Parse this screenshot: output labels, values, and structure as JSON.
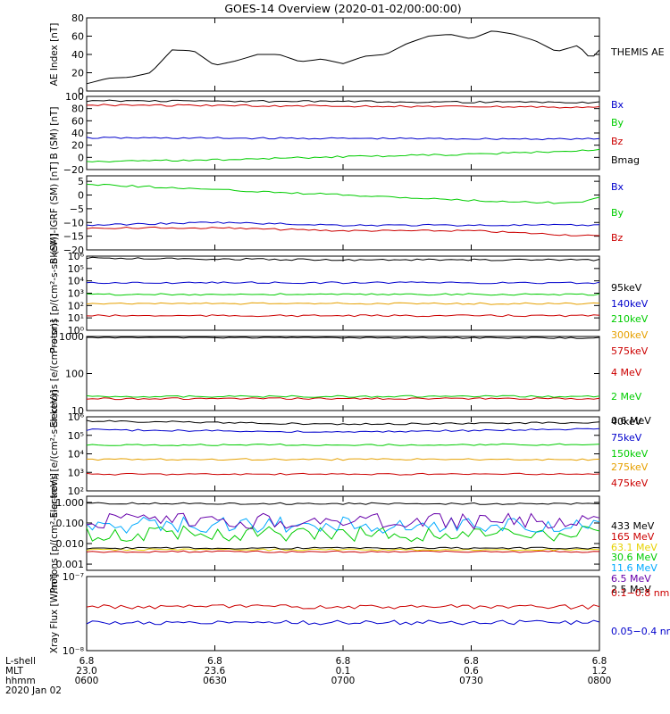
{
  "title": "GOES-14 Overview (2020-01-02/00:00:00)",
  "colors": {
    "black": "#000000",
    "red": "#cc0000",
    "green": "#00cc00",
    "blue": "#0000cc",
    "orange": "#e6a000",
    "yellow": "#e6d200",
    "cyan": "#00aaff",
    "purple": "#6600aa"
  },
  "chart_data": [
    {
      "type": "line",
      "ylabel": "AE Index [nT]",
      "ylim": [
        0,
        80
      ],
      "yscale": "linear",
      "yticks": [
        "0",
        "20",
        "40",
        "60",
        "80"
      ],
      "x_unit": "hours UT",
      "series": [
        {
          "name": "THEMIS AE",
          "color": "#000000",
          "x": [
            6.0,
            6.083,
            6.167,
            6.25,
            6.333,
            6.417,
            6.5,
            6.583,
            6.667,
            6.75,
            6.833,
            6.917,
            7.0,
            7.083,
            7.167,
            7.25,
            7.333,
            7.417,
            7.5,
            7.583,
            7.667,
            7.75,
            7.833,
            7.917,
            7.967,
            8.0
          ],
          "y": [
            8,
            14,
            15,
            20,
            45,
            44,
            28,
            33,
            40,
            40,
            32,
            35,
            30,
            38,
            40,
            52,
            60,
            62,
            57,
            66,
            62,
            55,
            43,
            50,
            35,
            45
          ]
        }
      ]
    },
    {
      "type": "line",
      "ylabel": "B (SM) [nT]",
      "ylim": [
        -20,
        100
      ],
      "yscale": "linear",
      "yticks": [
        "−20",
        "0",
        "20",
        "40",
        "60",
        "80",
        "100"
      ],
      "series": [
        {
          "name": "Bx",
          "color": "#0000cc",
          "x": [
            6.0,
            8.0
          ],
          "y": [
            32,
            30
          ]
        },
        {
          "name": "By",
          "color": "#00cc00",
          "x": [
            6.0,
            6.5,
            7.0,
            7.5,
            8.0
          ],
          "y": [
            -7,
            -4,
            1,
            5,
            12
          ]
        },
        {
          "name": "Bz",
          "color": "#cc0000",
          "x": [
            6.0,
            8.0
          ],
          "y": [
            86,
            82
          ]
        },
        {
          "name": "Bmag",
          "color": "#000000",
          "x": [
            6.0,
            8.0
          ],
          "y": [
            93,
            90
          ]
        }
      ]
    },
    {
      "type": "line",
      "ylabel": "B (SM)-IGRF (SM) [nT]",
      "ylim": [
        -20,
        7
      ],
      "yscale": "linear",
      "yticks": [
        "−20",
        "−15",
        "−10",
        "−5",
        "0",
        "5"
      ],
      "series": [
        {
          "name": "Bx",
          "color": "#0000cc",
          "x": [
            6.0,
            6.5,
            7.0,
            7.5,
            8.0
          ],
          "y": [
            -11,
            -10,
            -11,
            -11,
            -11
          ]
        },
        {
          "name": "By",
          "color": "#00cc00",
          "x": [
            6.0,
            6.5,
            7.0,
            7.5,
            7.9,
            8.0
          ],
          "y": [
            4,
            2,
            0,
            -2,
            -3,
            -1
          ]
        },
        {
          "name": "Bz",
          "color": "#cc0000",
          "x": [
            6.0,
            6.5,
            7.0,
            7.5,
            8.0
          ],
          "y": [
            -12,
            -12,
            -13,
            -13,
            -15
          ]
        }
      ]
    },
    {
      "type": "line",
      "ylabel": "Protons [p/(cm²-s-sr-keV)]",
      "ylim": [
        1,
        1000000
      ],
      "yscale": "log",
      "yticks": [
        "10⁰",
        "10¹",
        "10²",
        "10³",
        "10⁴",
        "10⁵",
        "10⁶"
      ],
      "series": [
        {
          "name": "575keV",
          "color": "#cc0000",
          "x": [
            6.0,
            8.0
          ],
          "y": [
            15,
            15
          ]
        },
        {
          "name": "300keV",
          "color": "#e6a000",
          "x": [
            6.0,
            8.0
          ],
          "y": [
            150,
            140
          ]
        },
        {
          "name": "210keV",
          "color": "#00cc00",
          "x": [
            6.0,
            8.0
          ],
          "y": [
            800,
            800
          ]
        },
        {
          "name": "140keV",
          "color": "#0000cc",
          "x": [
            6.0,
            8.0
          ],
          "y": [
            7000,
            7000
          ]
        },
        {
          "name": "95keV",
          "color": "#000000",
          "x": [
            6.0,
            7.0,
            8.0
          ],
          "y": [
            700000,
            500000,
            500000
          ]
        }
      ]
    },
    {
      "type": "line",
      "ylabel": "Electrons [e/(cm²-s-sr)]",
      "ylim": [
        10,
        1000
      ],
      "yscale": "log",
      "yticks": [
        "10",
        "100",
        "1000"
      ],
      "series": [
        {
          "name": "4 MeV",
          "color": "#cc0000",
          "x": [
            6.0,
            8.0
          ],
          "y": [
            21,
            21
          ]
        },
        {
          "name": "2 MeV",
          "color": "#00cc00",
          "x": [
            6.0,
            8.0
          ],
          "y": [
            24,
            24
          ]
        },
        {
          "name": "0.6 MeV",
          "color": "#000000",
          "x": [
            6.0,
            8.0
          ],
          "y": [
            950,
            930
          ]
        }
      ]
    },
    {
      "type": "line",
      "ylabel": "Electrons [e/(cm²-s-sr-keV)]",
      "ylim": [
        100,
        1000000
      ],
      "yscale": "log",
      "yticks": [
        "10²",
        "10³",
        "10⁴",
        "10⁵",
        "10⁶"
      ],
      "series": [
        {
          "name": "475keV",
          "color": "#cc0000",
          "x": [
            6.0,
            8.0
          ],
          "y": [
            800,
            800
          ]
        },
        {
          "name": "275keV",
          "color": "#e6a000",
          "x": [
            6.0,
            8.0
          ],
          "y": [
            5000,
            5000
          ]
        },
        {
          "name": "150keV",
          "color": "#00cc00",
          "x": [
            6.0,
            8.0
          ],
          "y": [
            30000,
            32000
          ]
        },
        {
          "name": "75keV",
          "color": "#0000cc",
          "x": [
            6.0,
            7.0,
            8.0
          ],
          "y": [
            200000,
            150000,
            220000
          ]
        },
        {
          "name": "40keV",
          "color": "#000000",
          "x": [
            6.0,
            7.0,
            8.0
          ],
          "y": [
            600000,
            400000,
            500000
          ]
        }
      ]
    },
    {
      "type": "line",
      "ylabel": "Protons [p/(cm²-s-sr-keV)]",
      "ylim": [
        0.0005,
        2.0
      ],
      "yscale": "log",
      "yticks": [
        "0.001",
        "0.010",
        "0.100",
        "1.000"
      ],
      "series": [
        {
          "name": "433 MeV",
          "color": "#000000",
          "x": [
            6.0,
            8.0
          ],
          "y": [
            0.9,
            0.85
          ]
        },
        {
          "name": "165 MeV",
          "color": "#cc0000",
          "x": [
            6.0,
            8.0
          ],
          "y": [
            0.004,
            0.004
          ]
        },
        {
          "name": "63.1 MeV",
          "color": "#e6d200",
          "x": [
            6.0,
            8.0
          ],
          "y": [
            0.005,
            0.005
          ]
        },
        {
          "name": "30.6 MeV",
          "color": "#00cc00",
          "x": [
            6.0,
            8.0
          ],
          "y": [
            0.03,
            0.03
          ]
        },
        {
          "name": "11.6 MeV",
          "color": "#00aaff",
          "x": [
            6.0,
            8.0
          ],
          "y": [
            0.08,
            0.08
          ]
        },
        {
          "name": "6.5 MeV",
          "color": "#6600aa",
          "x": [
            6.0,
            8.0
          ],
          "y": [
            0.12,
            0.12
          ]
        },
        {
          "name": "2.5 MeV",
          "color": "#000000",
          "x": [
            6.0,
            8.0
          ],
          "y": [
            0.006,
            0.006
          ]
        }
      ]
    },
    {
      "type": "line",
      "ylabel": "Xray Flux [W/m²]",
      "ylim": [
        1e-08,
        1e-07
      ],
      "yscale": "log",
      "yticks": [
        "10⁻⁸",
        "10⁻⁷"
      ],
      "series": [
        {
          "name": "0.1−0.8 nm",
          "color": "#cc0000",
          "x": [
            6.0,
            8.0
          ],
          "y": [
            3.9e-08,
            3.9e-08
          ]
        },
        {
          "name": "0.05−0.4 nm",
          "color": "#0000cc",
          "x": [
            6.0,
            8.0
          ],
          "y": [
            2.4e-08,
            2.4e-08
          ]
        }
      ]
    }
  ],
  "xaxis": {
    "ticks": [
      6.0,
      6.5,
      7.0,
      7.5,
      8.0
    ],
    "row_labels": [
      "L-shell",
      "MLT",
      "hhmm",
      "2020 Jan 02"
    ],
    "lshell": [
      "6.8",
      "6.8",
      "6.8",
      "6.8",
      "6.8"
    ],
    "mlt": [
      "23.0",
      "23.6",
      "0.1",
      "0.6",
      "1.2"
    ],
    "hhmm": [
      "0600",
      "0630",
      "0700",
      "0730",
      "0800"
    ]
  }
}
